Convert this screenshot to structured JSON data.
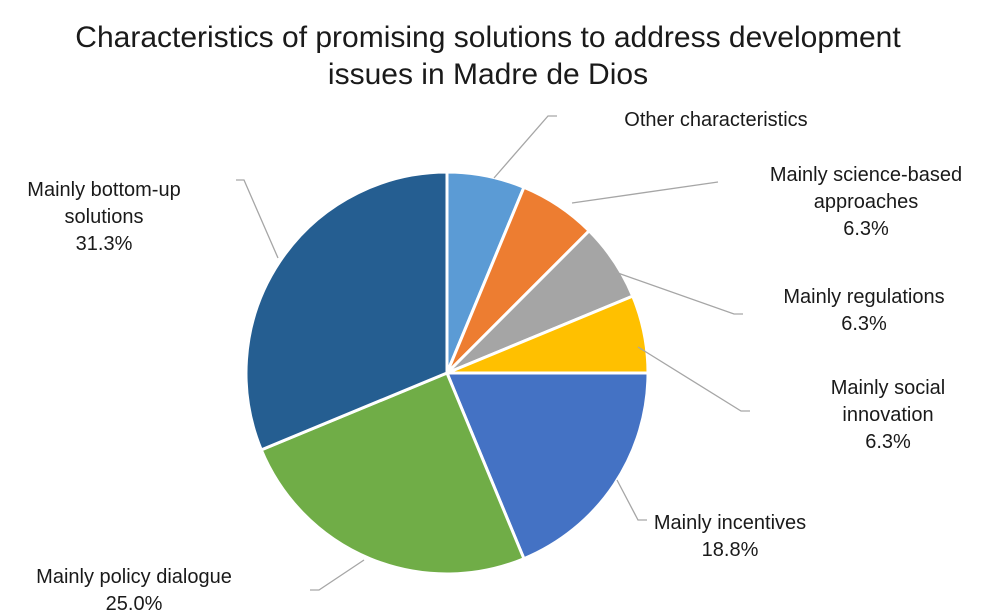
{
  "chart_data": {
    "type": "pie",
    "title_lines": [
      "Characteristics of promising solutions to address development",
      "issues in Madre de Dios"
    ],
    "start": "12 o'clock",
    "direction": "clockwise",
    "slices": [
      {
        "label_lines": [
          "Other characteristics"
        ],
        "value_label": "",
        "value": 6.25,
        "color": "#5b9bd5"
      },
      {
        "label_lines": [
          "Mainly science-based",
          "approaches"
        ],
        "value_label": "6.3%",
        "value": 6.25,
        "color": "#ed7d31"
      },
      {
        "label_lines": [
          "Mainly regulations"
        ],
        "value_label": "6.3%",
        "value": 6.25,
        "color": "#a5a5a5"
      },
      {
        "label_lines": [
          "Mainly social",
          "innovation"
        ],
        "value_label": "6.3%",
        "value": 6.25,
        "color": "#ffc000"
      },
      {
        "label_lines": [
          "Mainly incentives"
        ],
        "value_label": "18.8%",
        "value": 18.75,
        "color": "#4472c4"
      },
      {
        "label_lines": [
          "Mainly policy dialogue"
        ],
        "value_label": "25.0%",
        "value": 25.0,
        "color": "#70ad47"
      },
      {
        "label_lines": [
          "Mainly bottom-up",
          "solutions"
        ],
        "value_label": "31.3%",
        "value": 31.25,
        "color": "#255e91"
      }
    ],
    "leader_line_color": "#a6a6a6",
    "legend": "none"
  }
}
